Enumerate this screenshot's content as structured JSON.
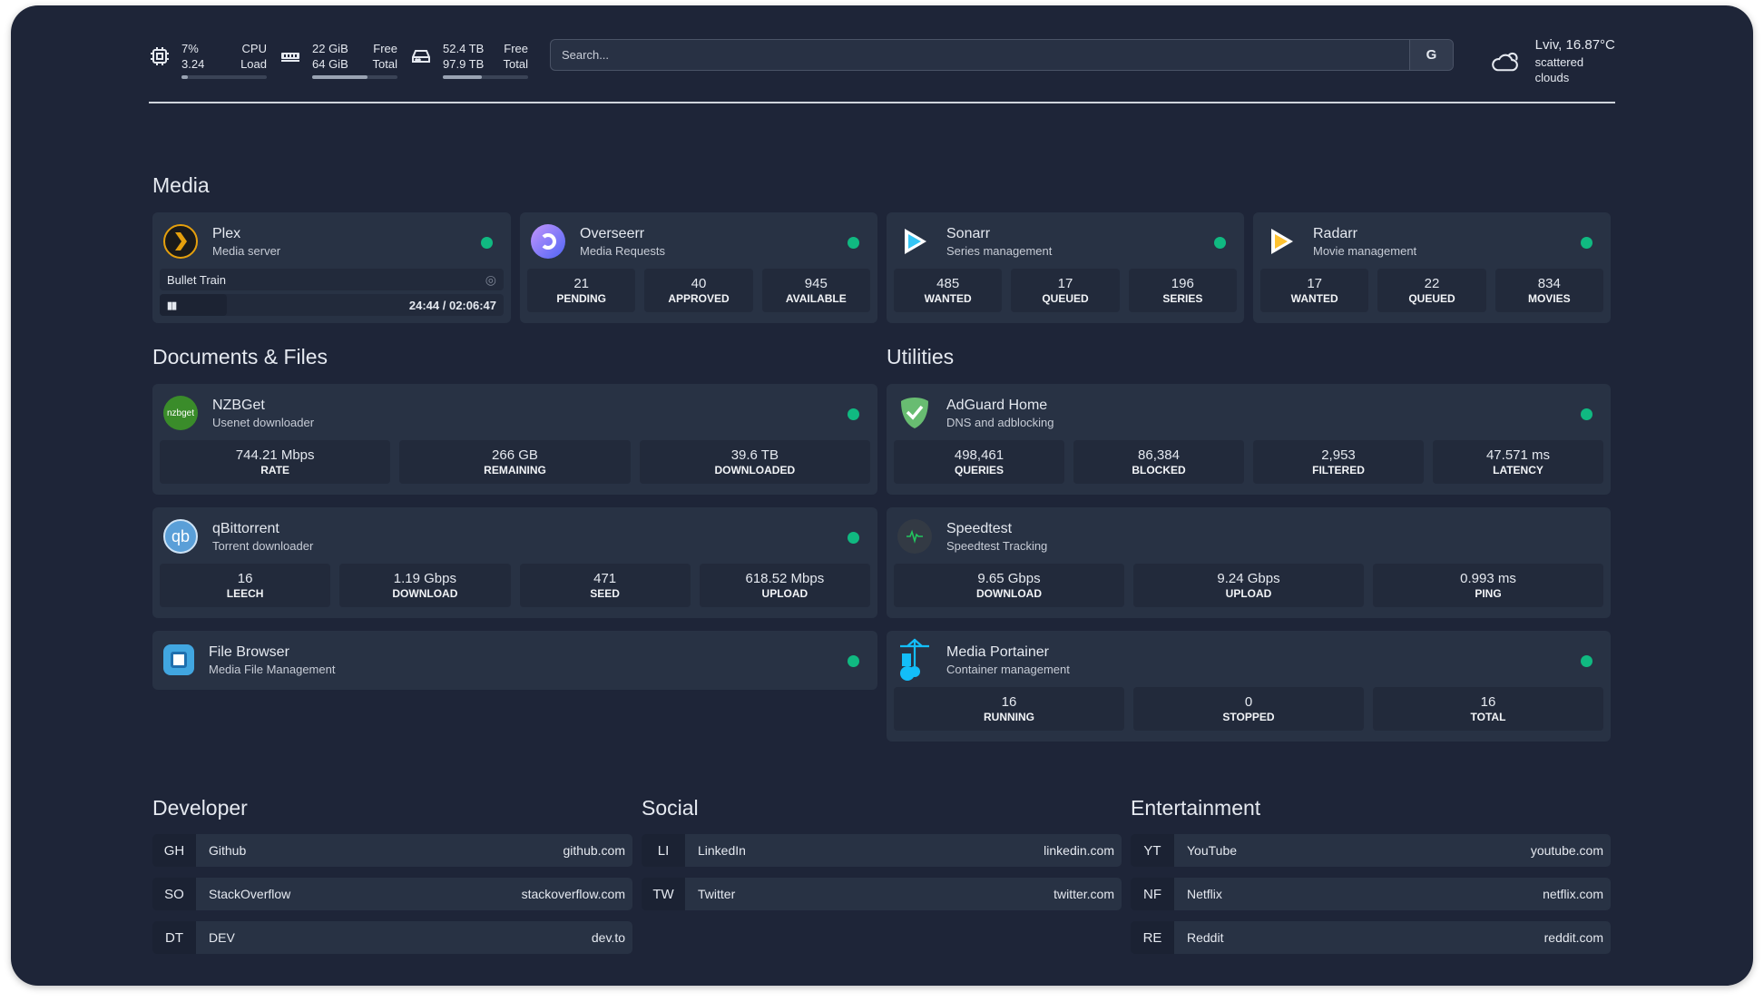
{
  "topbar": {
    "cpu": {
      "icon": "cpu-icon",
      "value1": "7%",
      "value2": "3.24",
      "label1": "CPU",
      "label2": "Load",
      "percent": 7
    },
    "memory": {
      "icon": "memory-icon",
      "value1": "22 GiB",
      "value2": "64 GiB",
      "label1": "Free",
      "label2": "Total",
      "percent": 65
    },
    "disk": {
      "icon": "hard-drive-icon",
      "value1": "52.4 TB",
      "value2": "97.9 TB",
      "label1": "Free",
      "label2": "Total",
      "percent": 46
    },
    "search": {
      "placeholder": "Search...",
      "button": "G"
    },
    "weather": {
      "icon": "cloud-sun-icon",
      "location": "Lviv, 16.87°C",
      "condition": "scattered clouds"
    }
  },
  "colors": {
    "background": "#1e2538",
    "card": "#283244",
    "status_online": "#10b981"
  },
  "media": {
    "title": "Media",
    "services": [
      {
        "name": "Plex",
        "description": "Media server",
        "icon": "plex-icon",
        "now_playing": {
          "title": "Bullet Train",
          "time": "24:44 / 02:06:47",
          "progress_percent": 19.5
        }
      },
      {
        "name": "Overseerr",
        "description": "Media Requests",
        "icon": "overseerr-icon",
        "stats": [
          {
            "value": "21",
            "label": "PENDING"
          },
          {
            "value": "40",
            "label": "APPROVED"
          },
          {
            "value": "945",
            "label": "AVAILABLE"
          }
        ]
      },
      {
        "name": "Sonarr",
        "description": "Series management",
        "icon": "sonarr-icon",
        "stats": [
          {
            "value": "485",
            "label": "WANTED"
          },
          {
            "value": "17",
            "label": "QUEUED"
          },
          {
            "value": "196",
            "label": "SERIES"
          }
        ]
      },
      {
        "name": "Radarr",
        "description": "Movie management",
        "icon": "radarr-icon",
        "stats": [
          {
            "value": "17",
            "label": "WANTED"
          },
          {
            "value": "22",
            "label": "QUEUED"
          },
          {
            "value": "834",
            "label": "MOVIES"
          }
        ]
      }
    ]
  },
  "documents": {
    "title": "Documents & Files",
    "services": [
      {
        "name": "NZBGet",
        "description": "Usenet downloader",
        "icon": "nzbget-icon",
        "icon_text": "nzbget",
        "stats": [
          {
            "value": "744.21 Mbps",
            "label": "RATE"
          },
          {
            "value": "266 GB",
            "label": "REMAINING"
          },
          {
            "value": "39.6 TB",
            "label": "DOWNLOADED"
          }
        ]
      },
      {
        "name": "qBittorrent",
        "description": "Torrent downloader",
        "icon": "qbittorrent-icon",
        "icon_text": "qb",
        "stats": [
          {
            "value": "16",
            "label": "LEECH"
          },
          {
            "value": "1.19 Gbps",
            "label": "DOWNLOAD"
          },
          {
            "value": "471",
            "label": "SEED"
          },
          {
            "value": "618.52 Mbps",
            "label": "UPLOAD"
          }
        ]
      },
      {
        "name": "File Browser",
        "description": "Media File Management",
        "icon": "file-browser-icon"
      }
    ]
  },
  "utilities": {
    "title": "Utilities",
    "services": [
      {
        "name": "AdGuard Home",
        "description": "DNS and adblocking",
        "icon": "adguard-shield-icon",
        "stats": [
          {
            "value": "498,461",
            "label": "QUERIES"
          },
          {
            "value": "86,384",
            "label": "BLOCKED"
          },
          {
            "value": "2,953",
            "label": "FILTERED"
          },
          {
            "value": "47.571 ms",
            "label": "LATENCY"
          }
        ]
      },
      {
        "name": "Speedtest",
        "description": "Speedtest Tracking",
        "icon": "speedtest-pulse-icon",
        "stats": [
          {
            "value": "9.65 Gbps",
            "label": "DOWNLOAD"
          },
          {
            "value": "9.24 Gbps",
            "label": "UPLOAD"
          },
          {
            "value": "0.993 ms",
            "label": "PING"
          }
        ]
      },
      {
        "name": "Media Portainer",
        "description": "Container management",
        "icon": "portainer-icon",
        "stats": [
          {
            "value": "16",
            "label": "RUNNING"
          },
          {
            "value": "0",
            "label": "STOPPED"
          },
          {
            "value": "16",
            "label": "TOTAL"
          }
        ]
      }
    ]
  },
  "bookmarks": [
    {
      "title": "Developer",
      "items": [
        {
          "abbr": "GH",
          "name": "Github",
          "url": "github.com"
        },
        {
          "abbr": "SO",
          "name": "StackOverflow",
          "url": "stackoverflow.com"
        },
        {
          "abbr": "DT",
          "name": "DEV",
          "url": "dev.to"
        }
      ]
    },
    {
      "title": "Social",
      "items": [
        {
          "abbr": "LI",
          "name": "LinkedIn",
          "url": "linkedin.com"
        },
        {
          "abbr": "TW",
          "name": "Twitter",
          "url": "twitter.com"
        }
      ]
    },
    {
      "title": "Entertainment",
      "items": [
        {
          "abbr": "YT",
          "name": "YouTube",
          "url": "youtube.com"
        },
        {
          "abbr": "NF",
          "name": "Netflix",
          "url": "netflix.com"
        },
        {
          "abbr": "RE",
          "name": "Reddit",
          "url": "reddit.com"
        }
      ]
    }
  ]
}
